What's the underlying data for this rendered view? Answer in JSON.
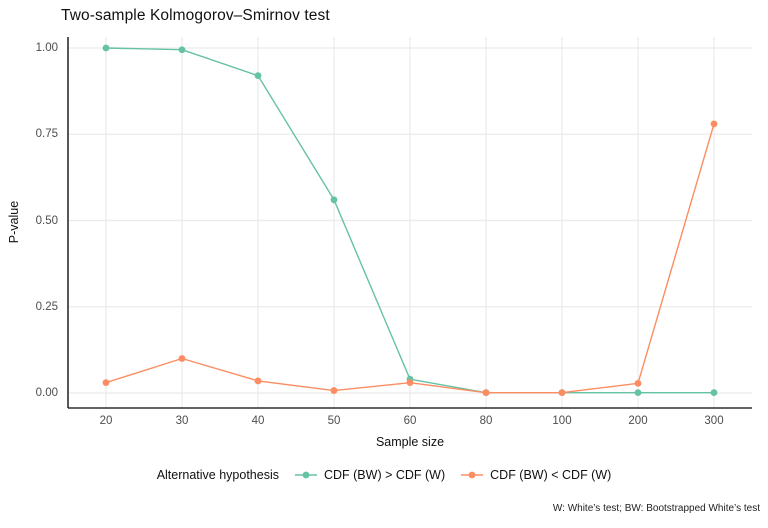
{
  "chart_data": {
    "type": "line",
    "title": "Two-sample Kolmogorov–Smirnov test",
    "xlabel": "Sample size",
    "ylabel": "P-value",
    "categories": [
      "20",
      "30",
      "40",
      "50",
      "60",
      "80",
      "100",
      "200",
      "300"
    ],
    "y_ticks": [
      "0.00",
      "0.25",
      "0.50",
      "0.75",
      "1.00"
    ],
    "ylim": [
      0,
      1
    ],
    "grid": "major-only",
    "legend_position": "bottom",
    "legend_title": "Alternative hypothesis",
    "caption": "W: White’s test; BW: Bootstrapped White’s test",
    "series": [
      {
        "name": "CDF (BW) > CDF (W)",
        "color": "#66C2A5",
        "values": [
          1.0,
          0.995,
          0.92,
          0.56,
          0.04,
          0.001,
          0.001,
          0.001,
          0.001
        ]
      },
      {
        "name": "CDF (BW) < CDF (W)",
        "color": "#FC8D62",
        "values": [
          0.03,
          0.1,
          0.035,
          0.007,
          0.03,
          0.001,
          0.001,
          0.028,
          0.78
        ]
      }
    ],
    "colors": {
      "gridline": "#EBEBEB",
      "axis_line": "#2e2e2e",
      "tick_text": "#4d4d4d"
    }
  }
}
